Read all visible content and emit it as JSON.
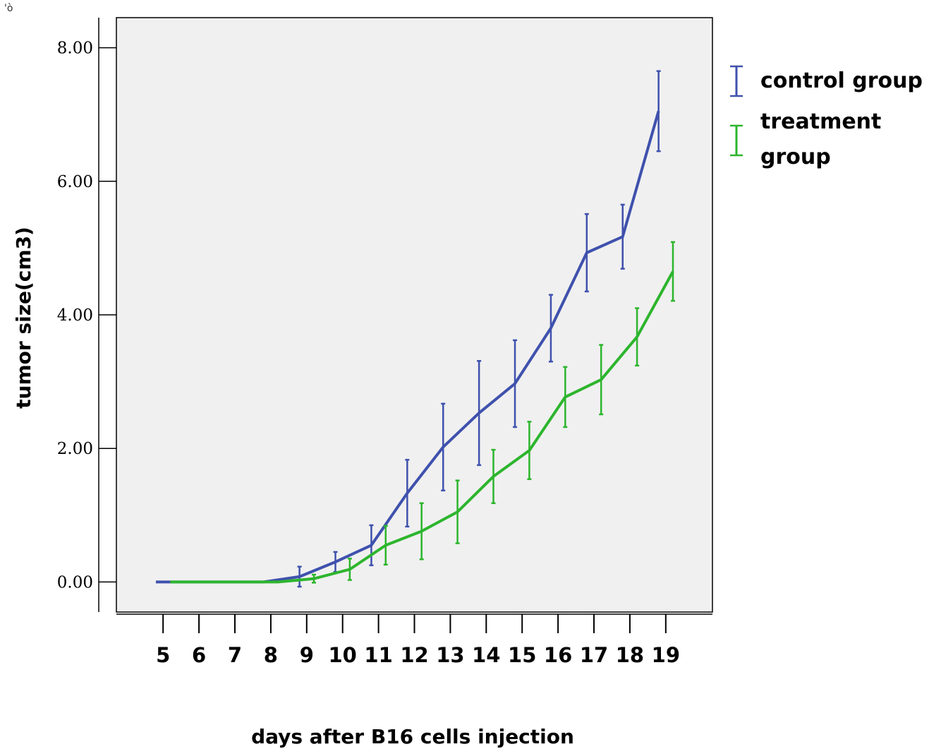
{
  "corner_mark": "'ò",
  "chart_data": {
    "type": "line",
    "title": "",
    "xlabel": "days after B16 cells injection",
    "ylabel": "tumor size(cm3)",
    "categories": [
      "5",
      "6",
      "7",
      "8",
      "9",
      "10",
      "11",
      "12",
      "13",
      "14",
      "15",
      "16",
      "17",
      "18",
      "19"
    ],
    "x": [
      5,
      6,
      7,
      8,
      9,
      10,
      11,
      12,
      13,
      14,
      15,
      16,
      17,
      18,
      19
    ],
    "ylim": [
      -0.45,
      8.45
    ],
    "xlim": [
      3.7,
      20.3
    ],
    "yticks": [
      0,
      2,
      4,
      6,
      8
    ],
    "ytick_labels": [
      "0.00",
      "2.00",
      "4.00",
      "6.00",
      "8.00"
    ],
    "grid": false,
    "legend_position": "right",
    "plot_background": "#f0f0f0",
    "series": [
      {
        "name": "control group",
        "color": "#3f51ad",
        "x_offset": -0.2,
        "values": [
          0.0,
          0.0,
          0.0,
          0.0,
          0.08,
          0.3,
          0.55,
          1.33,
          2.02,
          2.53,
          2.97,
          3.8,
          4.93,
          5.17,
          7.05
        ],
        "error": [
          0.0,
          0.0,
          0.0,
          0.0,
          0.15,
          0.15,
          0.3,
          0.5,
          0.65,
          0.78,
          0.65,
          0.5,
          0.58,
          0.48,
          0.6
        ]
      },
      {
        "name": "treatment group",
        "color": "#2db52d",
        "x_offset": 0.2,
        "values": [
          0.0,
          0.0,
          0.0,
          0.0,
          0.05,
          0.19,
          0.55,
          0.76,
          1.05,
          1.58,
          1.97,
          2.77,
          3.03,
          3.67,
          4.65
        ],
        "error": [
          0.0,
          0.0,
          0.0,
          0.0,
          0.06,
          0.16,
          0.29,
          0.42,
          0.47,
          0.4,
          0.43,
          0.45,
          0.52,
          0.43,
          0.44
        ]
      }
    ]
  }
}
